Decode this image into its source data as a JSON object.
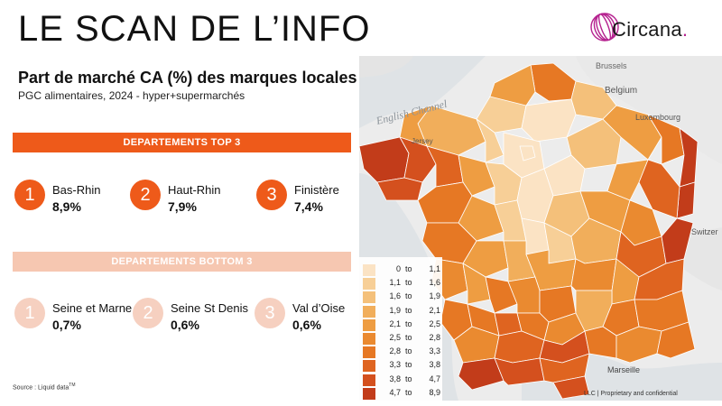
{
  "header": {
    "title": "LE SCAN DE L’INFO"
  },
  "brand": {
    "name": "Circana",
    "dot": ".",
    "accent": "#b5218f"
  },
  "chart": {
    "title": "Part de marché CA (%) des marques locales",
    "subtitle": "PGC alimentaires, 2024 - hyper+supermarchés"
  },
  "top": {
    "heading": "DEPARTEMENTS TOP 3",
    "color": "#ee5a1a",
    "items": [
      {
        "rank": "1",
        "name": "Bas-Rhin",
        "value": "8,9%"
      },
      {
        "rank": "2",
        "name": "Haut-Rhin",
        "value": "7,9%"
      },
      {
        "rank": "3",
        "name": "Finistère",
        "value": "7,4%"
      }
    ]
  },
  "bottom": {
    "heading": "DEPARTEMENTS BOTTOM 3",
    "color": "#f6c7b1",
    "items": [
      {
        "rank": "1",
        "name": "Seine et Marne",
        "value": "0,7%"
      },
      {
        "rank": "2",
        "name": "Seine St Denis",
        "value": "0,6%"
      },
      {
        "rank": "3",
        "name": "Val d’Oise",
        "value": "0,6%"
      }
    ]
  },
  "source": {
    "text": "Source : Liquid data",
    "tm": "TM"
  },
  "map": {
    "labels": {
      "channel": "English Channel",
      "jersey": "Jersey",
      "brussels": "Brussels",
      "belgium": "Belgium",
      "luxembourg": "Luxembourg",
      "switzerland": "Switzer",
      "marseille": "Marseille"
    },
    "legend": [
      {
        "from": "0",
        "to": "1,1",
        "color": "#fbe3c4"
      },
      {
        "from": "1,1",
        "to": "1,6",
        "color": "#f7cf97"
      },
      {
        "from": "1,6",
        "to": "1,9",
        "color": "#f4c07a"
      },
      {
        "from": "1,9",
        "to": "2,1",
        "color": "#f1ae5b"
      },
      {
        "from": "2,1",
        "to": "2,5",
        "color": "#ee9d42"
      },
      {
        "from": "2,5",
        "to": "2,8",
        "color": "#ea8a30"
      },
      {
        "from": "2,8",
        "to": "3,3",
        "color": "#e67824"
      },
      {
        "from": "3,3",
        "to": "3,8",
        "color": "#df6420"
      },
      {
        "from": "3,8",
        "to": "4,7",
        "color": "#d4501e"
      },
      {
        "from": "4,7",
        "to": "8,9",
        "color": "#c23c1a"
      }
    ],
    "to_word": "to",
    "footnote": "LLC  |  Proprietary and confidential"
  }
}
